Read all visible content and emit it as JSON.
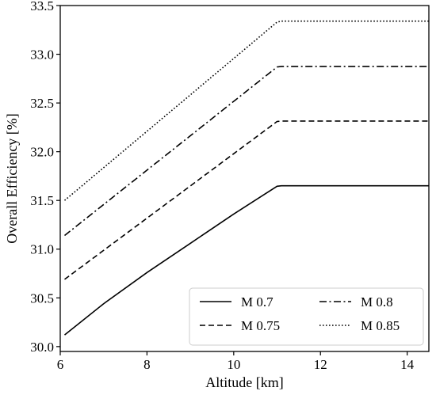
{
  "chart_data": {
    "type": "line",
    "title": "",
    "xlabel": "Altitude [km]",
    "ylabel": "Overall Efficiency [%]",
    "xlim": [
      6.0,
      14.5
    ],
    "ylim": [
      29.95,
      33.5
    ],
    "xticks": [
      6,
      8,
      10,
      12,
      14
    ],
    "xtick_labels": [
      "6",
      "8",
      "10",
      "12",
      "14"
    ],
    "yticks": [
      30.0,
      30.5,
      31.0,
      31.5,
      32.0,
      32.5,
      33.0,
      33.5
    ],
    "ytick_labels": [
      "30.0",
      "30.5",
      "31.0",
      "31.5",
      "32.0",
      "32.5",
      "33.0",
      "33.5"
    ],
    "grid": false,
    "legend": {
      "placement": "lower-right",
      "columns": 2
    },
    "series": [
      {
        "name": "M 0.7",
        "style": "solid",
        "color": "#000000",
        "x": [
          6.1,
          7.0,
          8.0,
          9.0,
          10.0,
          11.0,
          11.1,
          14.5
        ],
        "y": [
          30.12,
          30.44,
          30.76,
          31.06,
          31.36,
          31.645,
          31.65,
          31.65
        ]
      },
      {
        "name": "M 0.75",
        "style": "dashed",
        "color": "#000000",
        "x": [
          6.1,
          11.0,
          11.1,
          14.5
        ],
        "y": [
          30.69,
          32.31,
          32.315,
          32.315
        ]
      },
      {
        "name": "M 0.8",
        "style": "dashdot",
        "color": "#000000",
        "x": [
          6.1,
          11.0,
          11.1,
          14.5
        ],
        "y": [
          31.14,
          32.87,
          32.875,
          32.875
        ]
      },
      {
        "name": "M 0.85",
        "style": "dotted",
        "color": "#000000",
        "x": [
          6.1,
          11.0,
          11.1,
          14.5
        ],
        "y": [
          31.5,
          33.33,
          33.34,
          33.34
        ]
      }
    ]
  }
}
